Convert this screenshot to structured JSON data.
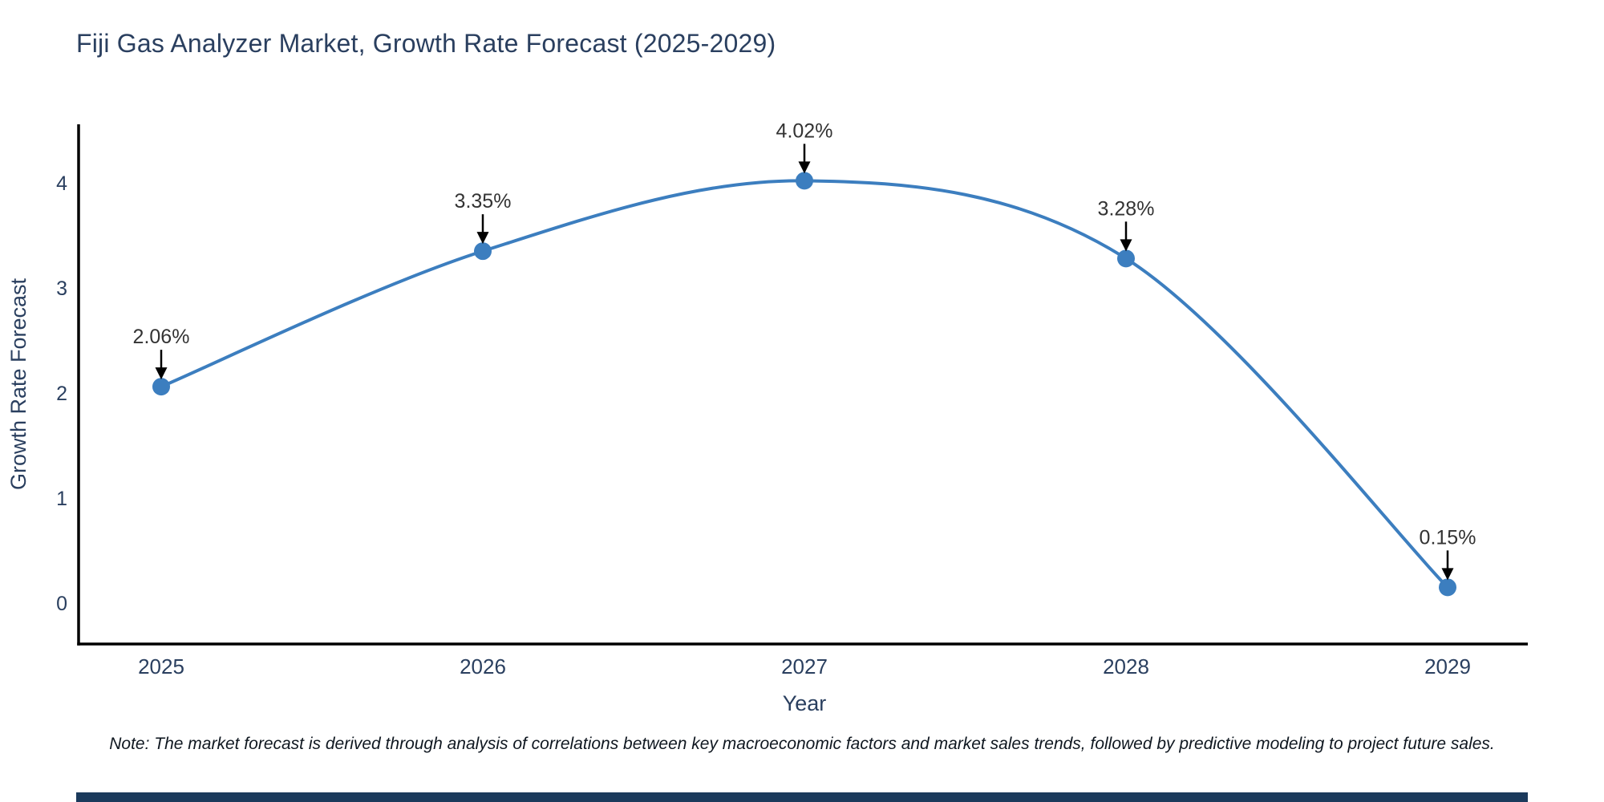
{
  "note": "Note: The market forecast is derived through analysis of correlations between key macroeconomic factors and market sales trends, followed by predictive modeling to project future sales.",
  "colors": {
    "title": "#2a3f5f",
    "tick": "#2a3f5f",
    "axis_line": "#000000",
    "line": "#3c7ebf",
    "marker": "#3c7ebf",
    "annotation_text": "#333333",
    "annotation_arrow": "#000000",
    "footer_bar": "#1b3a5c",
    "background": "#ffffff"
  },
  "chart_data": {
    "type": "line",
    "title": "Fiji Gas Analyzer Market, Growth Rate Forecast (2025-2029)",
    "x": [
      2025,
      2026,
      2027,
      2028,
      2029
    ],
    "series": [
      {
        "name": "Growth Rate Forecast",
        "values": [
          2.06,
          3.35,
          4.02,
          3.28,
          0.15
        ]
      }
    ],
    "point_labels": [
      "2.06%",
      "3.35%",
      "4.02%",
      "3.28%",
      "0.15%"
    ],
    "xlabel": "Year",
    "ylabel": "Growth Rate Forecast",
    "yticks": [
      0,
      1,
      2,
      3,
      4
    ],
    "ylim": [
      -0.4,
      4.55
    ],
    "xlim": [
      2024.74,
      2029.24
    ],
    "grid": false,
    "legend": "none",
    "line_shape": "spline",
    "annotations_have_arrows": true
  }
}
